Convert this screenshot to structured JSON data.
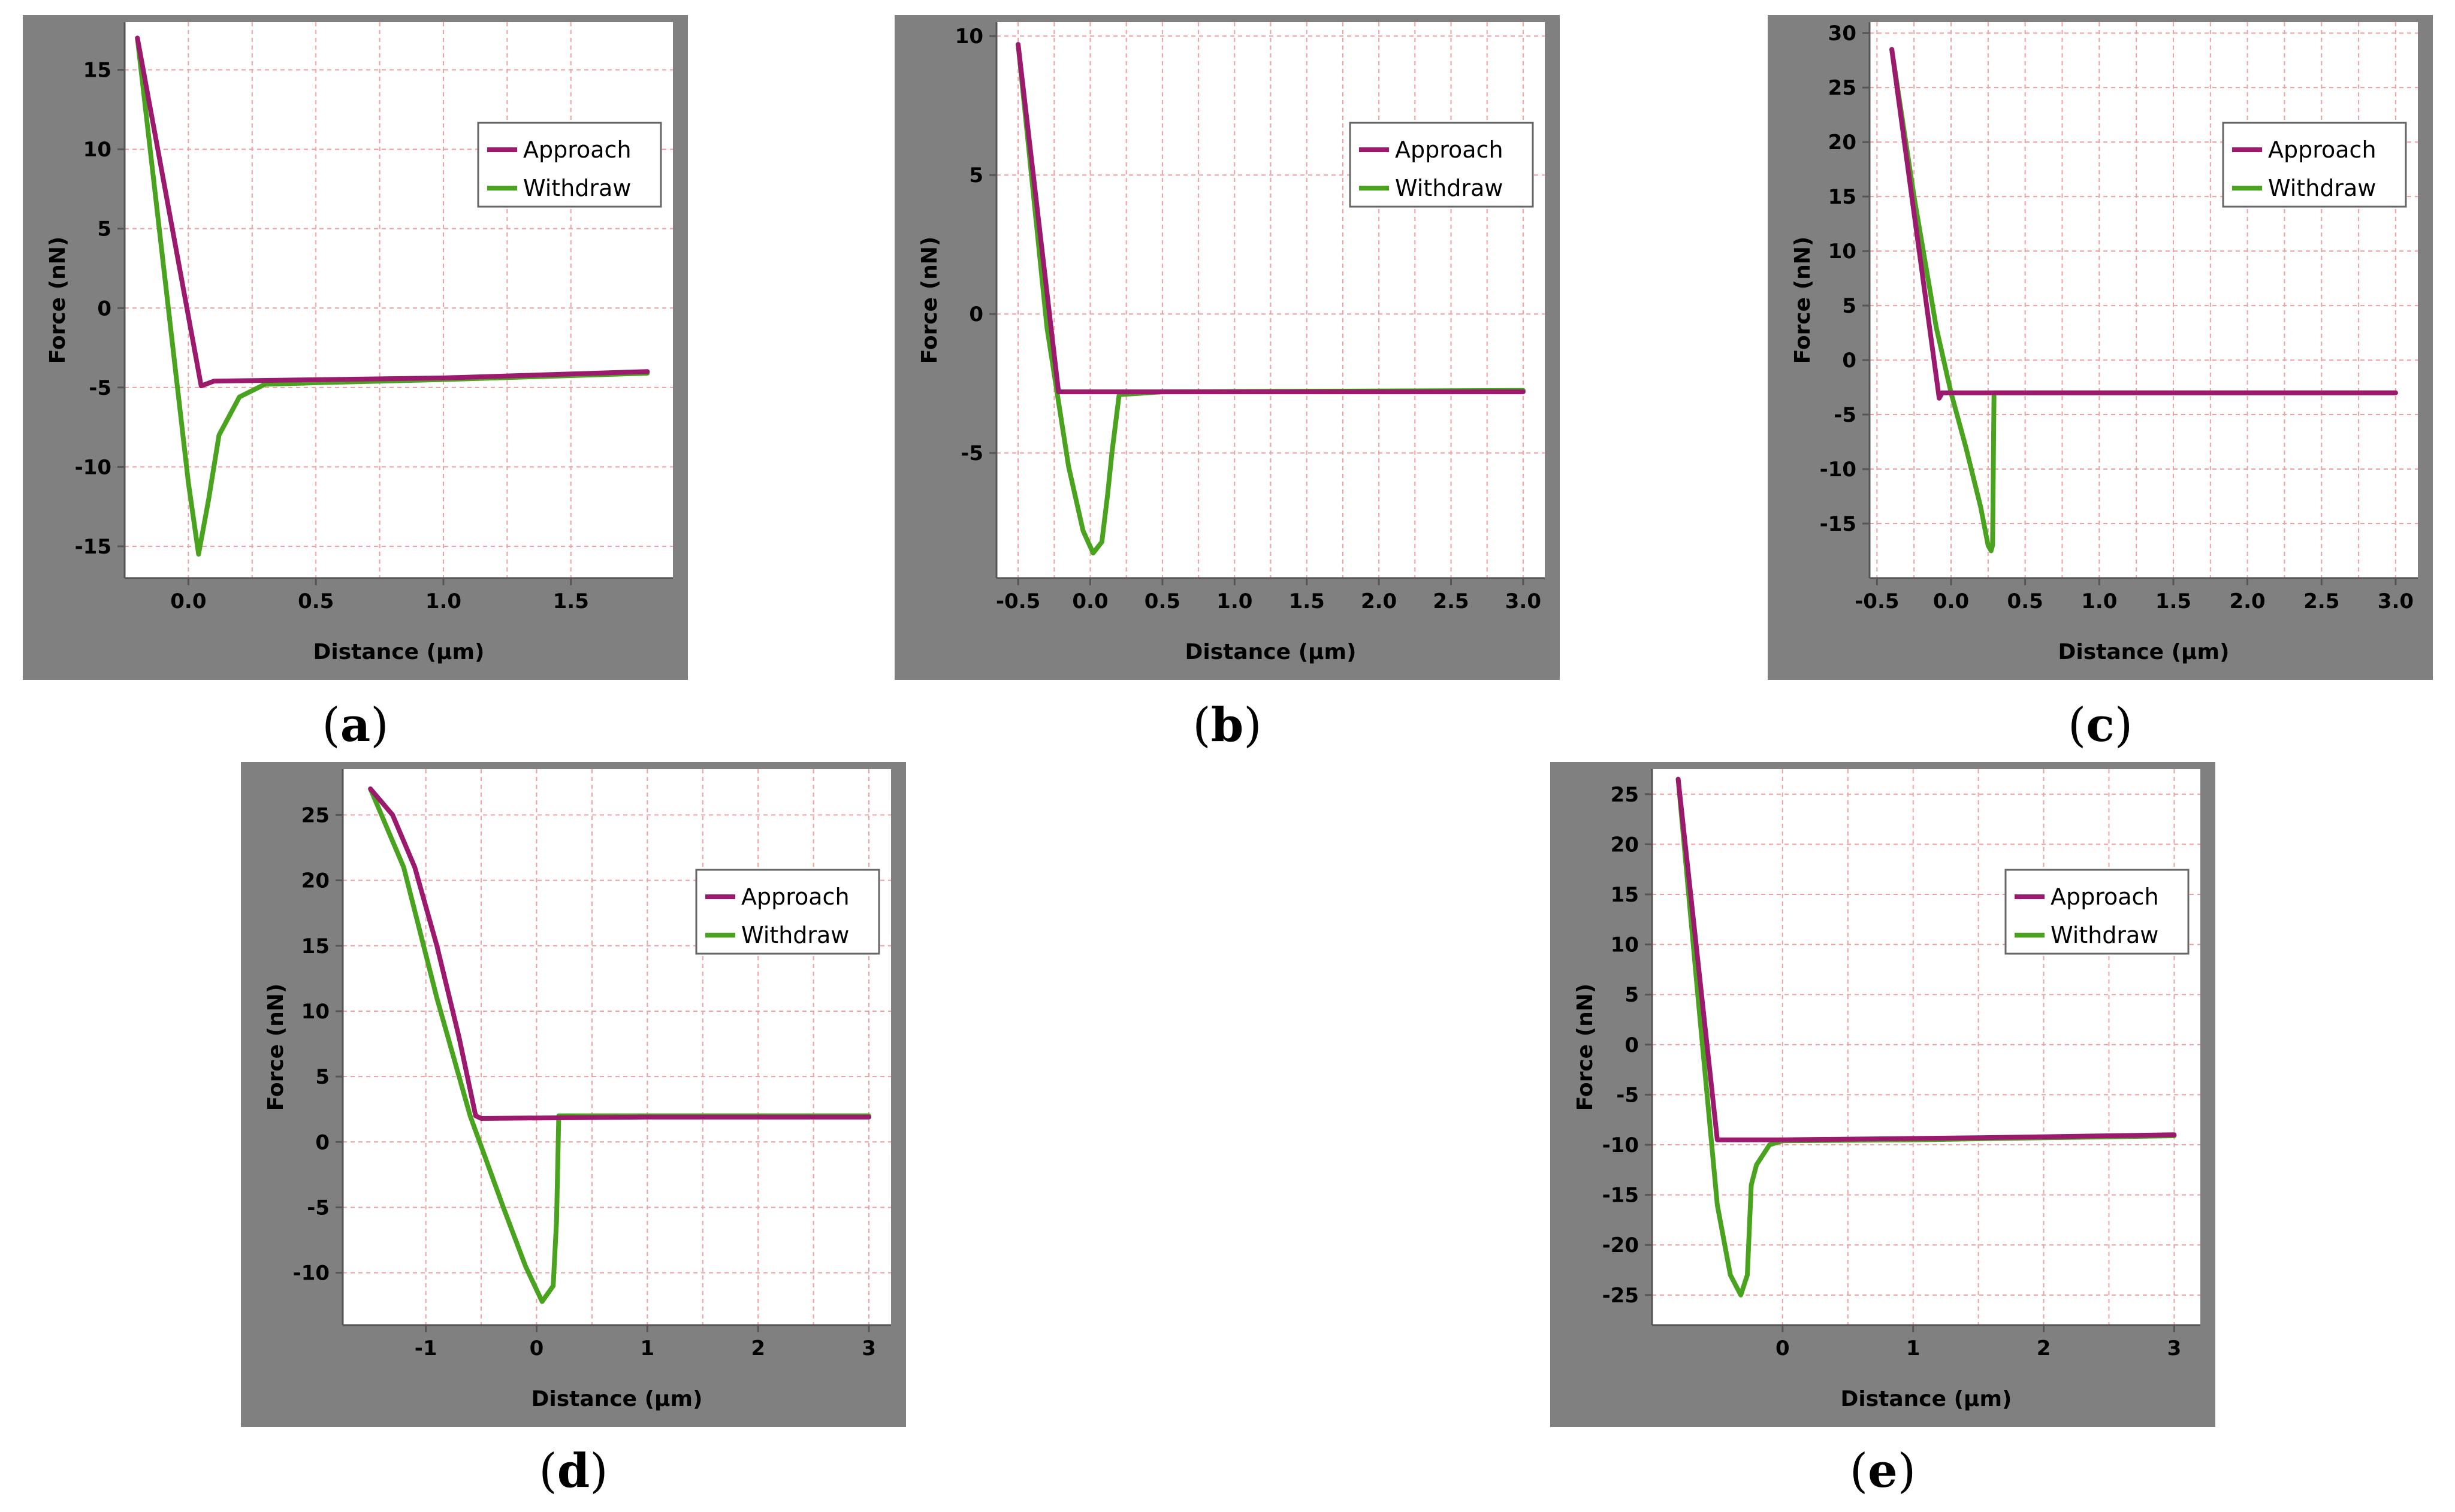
{
  "colors": {
    "frame": "#808080",
    "plot_bg": "#ffffff",
    "grid": "#f0a0a0",
    "axis": "#555555",
    "approach": "#9b1a6e",
    "withdraw": "#4aa31e",
    "text": "#000000"
  },
  "chart_data": [
    {
      "id": "a",
      "type": "line",
      "caption": "a",
      "xlabel": "Distance (µm)",
      "ylabel": "Force (nN)",
      "xlim": [
        -0.25,
        1.9
      ],
      "ylim": [
        -17,
        18
      ],
      "xticks": [
        0.0,
        0.5,
        1.0,
        1.5
      ],
      "xtick_labels": [
        "0.0",
        "0.5",
        "1.0",
        "1.5"
      ],
      "yticks": [
        -15,
        -10,
        -5,
        0,
        5,
        10,
        15
      ],
      "ytick_labels": [
        "-15",
        "-10",
        "-5",
        "0",
        "5",
        "10",
        "15"
      ],
      "legend": [
        "Approach",
        "Withdraw"
      ],
      "legend_position": "top-right",
      "series": [
        {
          "name": "Approach",
          "x": [
            -0.2,
            0.05,
            0.1,
            1.0,
            1.8
          ],
          "y": [
            17,
            -4.9,
            -4.6,
            -4.4,
            -4.0
          ]
        },
        {
          "name": "Withdraw",
          "x": [
            -0.2,
            -0.1,
            0.0,
            0.04,
            0.08,
            0.12,
            0.2,
            0.3,
            0.5,
            1.0,
            1.8
          ],
          "y": [
            17,
            3,
            -11,
            -15.5,
            -12,
            -8,
            -5.6,
            -4.8,
            -4.7,
            -4.5,
            -4.1
          ]
        }
      ]
    },
    {
      "id": "b",
      "type": "line",
      "caption": "b",
      "xlabel": "Distance (µm)",
      "ylabel": "Force (nN)",
      "xlim": [
        -0.65,
        3.15
      ],
      "ylim": [
        -9.5,
        10.5
      ],
      "xticks": [
        -0.5,
        0.0,
        0.5,
        1.0,
        1.5,
        2.0,
        2.5,
        3.0
      ],
      "xtick_labels": [
        "-0.5",
        "0.0",
        "0.5",
        "1.0",
        "1.5",
        "2.0",
        "2.5",
        "3.0"
      ],
      "yticks": [
        -5,
        0,
        5,
        10
      ],
      "ytick_labels": [
        "-5",
        "0",
        "5",
        "10"
      ],
      "legend": [
        "Approach",
        "Withdraw"
      ],
      "legend_position": "top-right",
      "series": [
        {
          "name": "Approach",
          "x": [
            -0.5,
            -0.22,
            0.5,
            3.0
          ],
          "y": [
            9.7,
            -2.8,
            -2.8,
            -2.8
          ]
        },
        {
          "name": "Withdraw",
          "x": [
            -0.5,
            -0.3,
            -0.15,
            -0.05,
            0.02,
            0.08,
            0.12,
            0.15,
            0.2,
            0.5,
            3.0
          ],
          "y": [
            9.7,
            -0.5,
            -5.5,
            -7.8,
            -8.6,
            -8.2,
            -6.5,
            -5.0,
            -2.9,
            -2.8,
            -2.75
          ]
        }
      ]
    },
    {
      "id": "c",
      "type": "line",
      "caption": "c",
      "xlabel": "Distance (µm)",
      "ylabel": "Force (nN)",
      "xlim": [
        -0.55,
        3.15
      ],
      "ylim": [
        -20,
        31
      ],
      "xticks": [
        -0.5,
        0.0,
        0.5,
        1.0,
        1.5,
        2.0,
        2.5,
        3.0
      ],
      "xtick_labels": [
        "-0.5",
        "0.0",
        "0.5",
        "1.0",
        "1.5",
        "2.0",
        "2.5",
        "3.0"
      ],
      "yticks": [
        -15,
        -10,
        -5,
        0,
        5,
        10,
        15,
        20,
        25,
        30
      ],
      "ytick_labels": [
        "-15",
        "-10",
        "-5",
        "0",
        "5",
        "10",
        "15",
        "20",
        "25",
        "30"
      ],
      "legend": [
        "Approach",
        "Withdraw"
      ],
      "legend_position": "top-right",
      "series": [
        {
          "name": "Approach",
          "x": [
            -0.4,
            -0.08,
            -0.06,
            0.5,
            3.0
          ],
          "y": [
            28.5,
            -3.5,
            -3.0,
            -3.0,
            -3.0
          ]
        },
        {
          "name": "Withdraw",
          "x": [
            -0.4,
            -0.25,
            -0.1,
            0.0,
            0.1,
            0.2,
            0.25,
            0.27,
            0.28,
            0.29,
            0.5,
            3.0
          ],
          "y": [
            28.5,
            15,
            3,
            -3,
            -8,
            -13.5,
            -17,
            -17.5,
            -17,
            -3,
            -3.0,
            -3.0
          ]
        }
      ]
    },
    {
      "id": "d",
      "type": "line",
      "caption": "d",
      "xlabel": "Distance (µm)",
      "ylabel": "Force (nN)",
      "xlim": [
        -1.75,
        3.2
      ],
      "ylim": [
        -14,
        28.5
      ],
      "xticks": [
        -1,
        0,
        1,
        2,
        3
      ],
      "xtick_labels": [
        "-1",
        "0",
        "1",
        "2",
        "3"
      ],
      "yticks": [
        -10,
        -5,
        0,
        5,
        10,
        15,
        20,
        25
      ],
      "ytick_labels": [
        "-10",
        "-5",
        "0",
        "5",
        "10",
        "15",
        "20",
        "25"
      ],
      "legend": [
        "Approach",
        "Withdraw"
      ],
      "legend_position": "top-right",
      "series": [
        {
          "name": "Approach",
          "x": [
            -1.5,
            -1.3,
            -1.1,
            -0.9,
            -0.7,
            -0.55,
            -0.5,
            1.0,
            3.0
          ],
          "y": [
            27,
            25,
            21,
            15,
            8,
            2,
            1.8,
            1.9,
            1.9
          ]
        },
        {
          "name": "Withdraw",
          "x": [
            -1.5,
            -1.2,
            -0.9,
            -0.6,
            -0.3,
            -0.1,
            0.05,
            0.15,
            0.18,
            0.2,
            1.0,
            3.0
          ],
          "y": [
            27,
            21,
            11,
            2,
            -5,
            -9.5,
            -12.2,
            -11,
            -6,
            2,
            2,
            2
          ]
        }
      ]
    },
    {
      "id": "e",
      "type": "line",
      "caption": "e",
      "xlabel": "Distance (µm)",
      "ylabel": "Force (nN)",
      "xlim": [
        -1.0,
        3.2
      ],
      "ylim": [
        -28,
        27.5
      ],
      "xticks": [
        0,
        1,
        2,
        3
      ],
      "xtick_labels": [
        "0",
        "1",
        "2",
        "3"
      ],
      "yticks": [
        -25,
        -20,
        -15,
        -10,
        -5,
        0,
        5,
        10,
        15,
        20,
        25
      ],
      "ytick_labels": [
        "-25",
        "-20",
        "-15",
        "-10",
        "-5",
        "0",
        "5",
        "10",
        "15",
        "20",
        "25"
      ],
      "legend": [
        "Approach",
        "Withdraw"
      ],
      "legend_position": "top-right",
      "series": [
        {
          "name": "Approach",
          "x": [
            -0.8,
            -0.5,
            0.0,
            1.5,
            3.0
          ],
          "y": [
            26.5,
            -9.5,
            -9.5,
            -9.3,
            -9.0
          ]
        },
        {
          "name": "Withdraw",
          "x": [
            -0.8,
            -0.65,
            -0.5,
            -0.4,
            -0.32,
            -0.27,
            -0.24,
            -0.2,
            -0.1,
            0.0,
            1.0,
            3.0
          ],
          "y": [
            26.5,
            5,
            -16,
            -23,
            -25,
            -23,
            -14,
            -12,
            -10,
            -9.6,
            -9.5,
            -9.1
          ]
        }
      ]
    }
  ]
}
